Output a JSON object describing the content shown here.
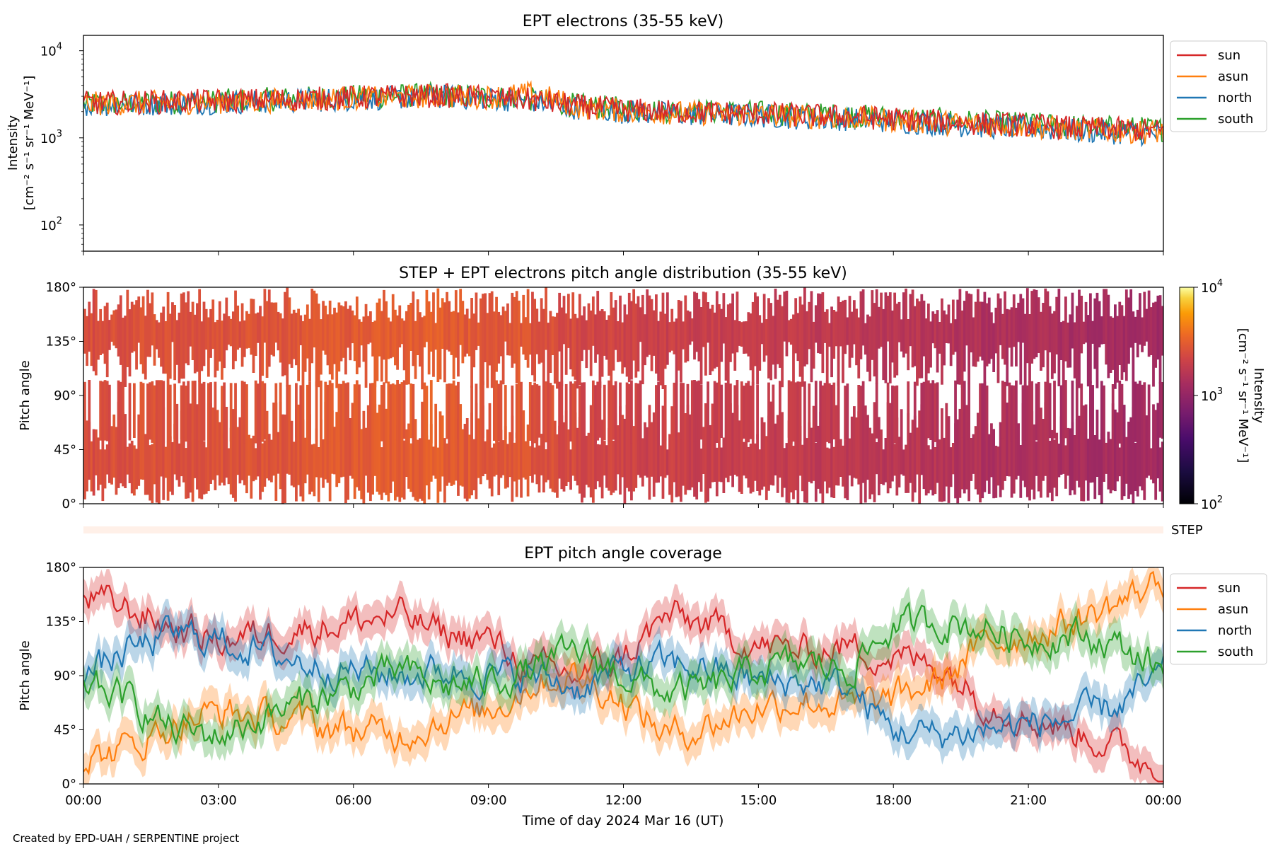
{
  "footer": "Created by EPD-UAH / SERPENTINE project",
  "chart_data": [
    {
      "type": "line",
      "title": "EPT electrons (35-55 keV)",
      "ylabel_line1": "Intensity",
      "ylabel_line2": "[cm⁻² s⁻¹ sr⁻¹ MeV⁻¹]",
      "yscale": "log",
      "ylim": [
        50,
        15000
      ],
      "yticks": [
        {
          "value": 100,
          "base": "10",
          "exp": "2"
        },
        {
          "value": 1000,
          "base": "10",
          "exp": "3"
        },
        {
          "value": 10000,
          "base": "10",
          "exp": "4"
        }
      ],
      "xlim_hours": [
        0,
        24
      ],
      "x_hours": [
        0,
        1,
        2,
        3,
        4,
        5,
        6,
        7,
        8,
        9,
        10,
        11,
        12,
        13,
        14,
        15,
        16,
        17,
        18,
        19,
        20,
        21,
        22,
        23,
        24
      ],
      "legend": "top-right",
      "series": [
        {
          "name": "sun",
          "color": "#d62728",
          "values": [
            2500,
            2550,
            2600,
            2650,
            2700,
            2800,
            2900,
            3000,
            3050,
            2900,
            2700,
            2300,
            2100,
            2000,
            1950,
            1900,
            1800,
            1750,
            1650,
            1550,
            1450,
            1400,
            1300,
            1250,
            1200
          ]
        },
        {
          "name": "asun",
          "color": "#ff7f0e",
          "values": [
            2450,
            2500,
            2550,
            2600,
            2650,
            2750,
            2850,
            2950,
            3000,
            2950,
            3200,
            2250,
            2050,
            1950,
            1900,
            1850,
            1750,
            1700,
            1600,
            1500,
            1400,
            1350,
            1250,
            1200,
            1150
          ]
        },
        {
          "name": "north",
          "color": "#1f77b4",
          "values": [
            2400,
            2450,
            2500,
            2550,
            2600,
            2700,
            2800,
            2900,
            2950,
            2850,
            2650,
            2200,
            2000,
            1900,
            1850,
            1800,
            1700,
            1650,
            1550,
            1450,
            1350,
            1300,
            1200,
            1150,
            1100
          ]
        },
        {
          "name": "south",
          "color": "#2ca02c",
          "values": [
            2450,
            2500,
            2550,
            2650,
            2750,
            2850,
            2950,
            3050,
            3100,
            2950,
            2750,
            2350,
            2150,
            2050,
            2000,
            1950,
            1850,
            1800,
            1700,
            1600,
            1500,
            1450,
            1350,
            1300,
            1250
          ]
        }
      ]
    },
    {
      "type": "heatmap",
      "title": "STEP + EPT electrons pitch angle distribution (35-55 keV)",
      "ylabel": "Pitch angle",
      "ylim": [
        0,
        180
      ],
      "yticks": [
        "0°",
        "45°",
        "90°",
        "135°",
        "180°"
      ],
      "colorbar": {
        "label_line1": "Intensity",
        "label_line2": "[cm⁻² s⁻¹ sr⁻¹ MeV⁻¹]",
        "scale": "log",
        "range": [
          100,
          10000
        ],
        "ticks": [
          {
            "value": 100,
            "base": "10",
            "exp": "2"
          },
          {
            "value": 1000,
            "base": "10",
            "exp": "3"
          },
          {
            "value": 10000,
            "base": "10",
            "exp": "4"
          }
        ]
      },
      "x_hours": [
        0,
        1,
        2,
        3,
        4,
        5,
        6,
        7,
        8,
        9,
        10,
        11,
        12,
        13,
        14,
        15,
        16,
        17,
        18,
        19,
        20,
        21,
        22,
        23,
        24
      ],
      "intensity": [
        2500,
        2550,
        2600,
        2650,
        2700,
        2800,
        2900,
        3000,
        3050,
        2900,
        2700,
        2300,
        2100,
        2000,
        1950,
        1900,
        1800,
        1750,
        1650,
        1550,
        1450,
        1400,
        1300,
        1250,
        1200
      ]
    },
    {
      "type": "bar",
      "label": "STEP",
      "color": "#fff0e8"
    },
    {
      "type": "line",
      "title": "EPT pitch angle coverage",
      "ylabel": "Pitch angle",
      "xlabel": "Time of day 2024 Mar 16 (UT)",
      "ylim": [
        0,
        180
      ],
      "yticks": [
        "0°",
        "45°",
        "90°",
        "135°",
        "180°"
      ],
      "xticks": [
        "00:00",
        "03:00",
        "06:00",
        "09:00",
        "12:00",
        "15:00",
        "18:00",
        "21:00",
        "00:00"
      ],
      "xlim_hours": [
        0,
        24
      ],
      "legend": "top-right",
      "x_hours": [
        0,
        1,
        2,
        3,
        4,
        5,
        6,
        7,
        8,
        9,
        10,
        11,
        12,
        13,
        14,
        15,
        16,
        17,
        18,
        19,
        20,
        21,
        22,
        23,
        24
      ],
      "series": [
        {
          "name": "sun",
          "color": "#d62728",
          "values": [
            155,
            145,
            130,
            120,
            125,
            130,
            135,
            140,
            125,
            120,
            95,
            90,
            105,
            140,
            130,
            115,
            110,
            115,
            105,
            100,
            70,
            55,
            45,
            30,
            10
          ]
        },
        {
          "name": "asun",
          "color": "#ff7f0e",
          "values": [
            20,
            30,
            50,
            60,
            55,
            50,
            45,
            40,
            55,
            60,
            85,
            90,
            70,
            40,
            50,
            65,
            70,
            65,
            70,
            85,
            115,
            125,
            135,
            150,
            170
          ]
        },
        {
          "name": "north",
          "color": "#1f77b4",
          "values": [
            90,
            110,
            125,
            120,
            110,
            100,
            95,
            90,
            95,
            90,
            90,
            80,
            95,
            100,
            95,
            85,
            85,
            80,
            45,
            40,
            45,
            50,
            55,
            65,
            90
          ]
        },
        {
          "name": "south",
          "color": "#2ca02c",
          "values": [
            85,
            70,
            45,
            40,
            55,
            70,
            80,
            95,
            80,
            85,
            95,
            110,
            90,
            75,
            80,
            95,
            100,
            95,
            130,
            135,
            130,
            120,
            125,
            115,
            95
          ]
        }
      ]
    }
  ]
}
